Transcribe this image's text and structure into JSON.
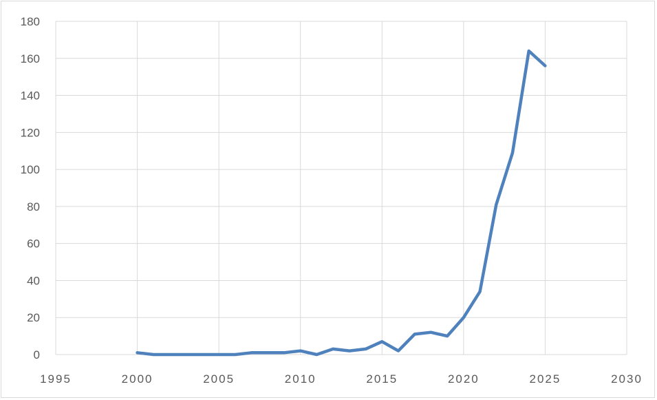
{
  "chart_data": {
    "type": "line",
    "title": "",
    "xlabel": "",
    "ylabel": "",
    "xlim": [
      1995,
      2030
    ],
    "ylim": [
      0,
      180
    ],
    "x_ticks": [
      1995,
      2000,
      2005,
      2010,
      2015,
      2020,
      2025,
      2030
    ],
    "y_ticks": [
      0,
      20,
      40,
      60,
      80,
      100,
      120,
      140,
      160,
      180
    ],
    "grid": true,
    "legend": "none",
    "series": [
      {
        "color": "#4f81bd",
        "x": [
          2000,
          2001,
          2002,
          2003,
          2004,
          2005,
          2006,
          2007,
          2008,
          2009,
          2010,
          2011,
          2012,
          2013,
          2014,
          2015,
          2016,
          2017,
          2018,
          2019,
          2020,
          2021,
          2022,
          2023,
          2024,
          2025
        ],
        "y": [
          1,
          0,
          0,
          0,
          0,
          0,
          0,
          1,
          1,
          1,
          2,
          0,
          3,
          2,
          3,
          7,
          2,
          11,
          12,
          10,
          20,
          34,
          81,
          109,
          164,
          156
        ]
      }
    ]
  }
}
